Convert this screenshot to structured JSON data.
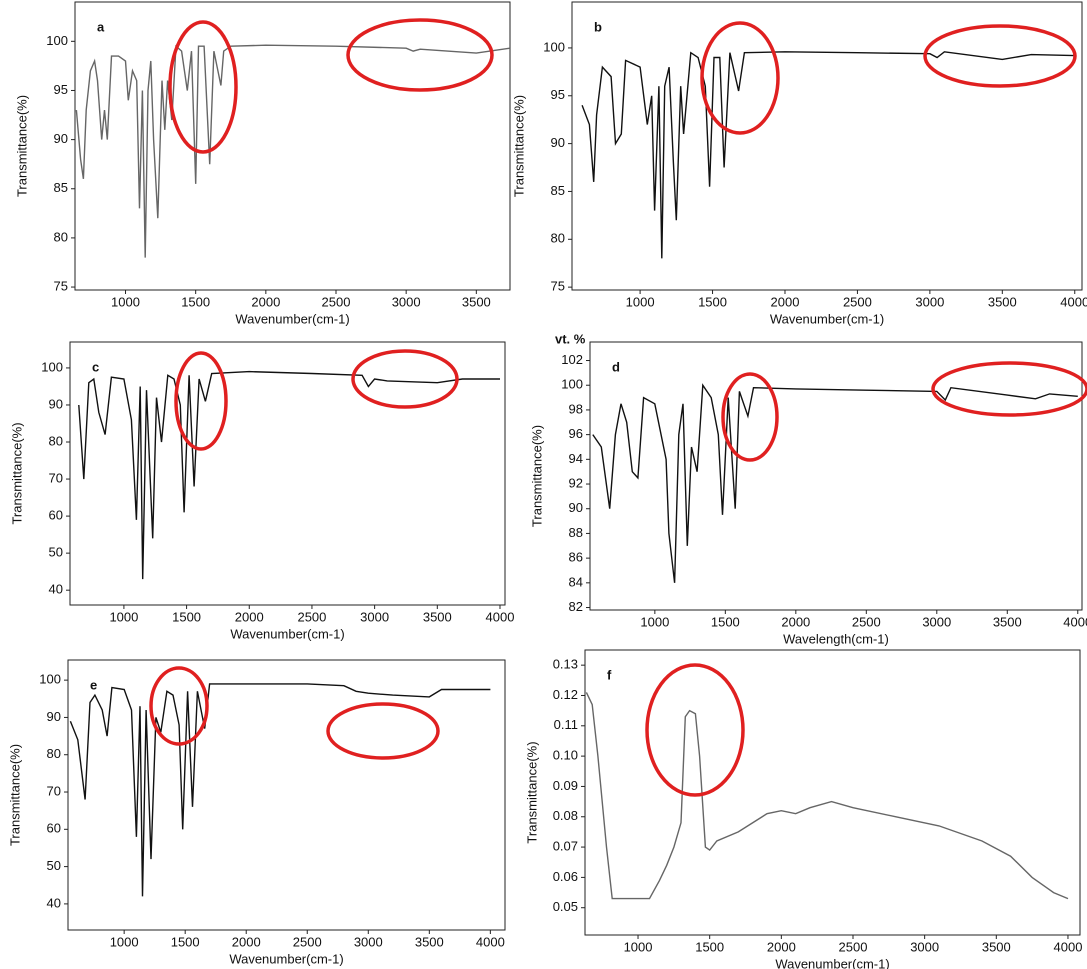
{
  "fragment": "vt. %",
  "chart_data": [
    {
      "type": "line",
      "panel_label": "a",
      "x_label": "Wavenumber(cm-1)",
      "y_label": "Transmittance(%)",
      "x": [
        650,
        680,
        700,
        720,
        750,
        780,
        800,
        830,
        850,
        870,
        900,
        950,
        1000,
        1020,
        1050,
        1080,
        1100,
        1120,
        1140,
        1160,
        1180,
        1200,
        1230,
        1260,
        1280,
        1300,
        1330,
        1360,
        1400,
        1440,
        1470,
        1500,
        1520,
        1560,
        1600,
        1630,
        1680,
        1700,
        1750,
        2000,
        2500,
        3000,
        3050,
        3100,
        3500,
        3740
      ],
      "series": [
        {
          "color": "#666666",
          "values": [
            93,
            88,
            86,
            93,
            97,
            98,
            96,
            90,
            93,
            90,
            98.5,
            98.5,
            98,
            94,
            97,
            96,
            83,
            95,
            78,
            95,
            98,
            90,
            82,
            96,
            91,
            96,
            92,
            99.5,
            99,
            95,
            99,
            85.5,
            99.5,
            99.5,
            87.5,
            99,
            95.5,
            99,
            99.5,
            99.6,
            99.5,
            99.3,
            99,
            99.2,
            98.8,
            99.3
          ]
        }
      ],
      "xlim": [
        640,
        3740
      ],
      "ylim": [
        74.7,
        104
      ],
      "xticks": [
        1000,
        1500,
        2000,
        2500,
        3000,
        3500
      ],
      "yticks": [
        75,
        80,
        85,
        90,
        95,
        100
      ]
    },
    {
      "type": "line",
      "panel_label": "b",
      "x_label": "Wavenumber(cm-1)",
      "y_label": "Transmittance(%)",
      "x": [
        600,
        650,
        680,
        700,
        740,
        800,
        830,
        870,
        900,
        1000,
        1050,
        1080,
        1100,
        1130,
        1150,
        1170,
        1200,
        1230,
        1250,
        1280,
        1300,
        1350,
        1400,
        1450,
        1480,
        1510,
        1550,
        1580,
        1620,
        1680,
        1720,
        2000,
        2500,
        3000,
        3050,
        3100,
        3500,
        3700,
        4000
      ],
      "series": [
        {
          "color": "#111111",
          "values": [
            94,
            92,
            86,
            93,
            98,
            97,
            90,
            91,
            98.7,
            98,
            92,
            95,
            83,
            96,
            78,
            96,
            98,
            88,
            82,
            96,
            91,
            99.5,
            99,
            96,
            85.5,
            99,
            99,
            87.5,
            99.5,
            95.5,
            99.5,
            99.6,
            99.5,
            99.4,
            99,
            99.6,
            98.8,
            99.3,
            99.2
          ]
        }
      ],
      "xlim": [
        530,
        4050
      ],
      "ylim": [
        74.7,
        104.8
      ],
      "xticks": [
        1000,
        1500,
        2000,
        2500,
        3000,
        3500,
        4000
      ],
      "yticks": [
        75,
        80,
        85,
        90,
        95,
        100
      ]
    },
    {
      "type": "line",
      "panel_label": "c",
      "x_label": "Wavenumber(cm-1)",
      "y_label": "Transmittance(%)",
      "x": [
        640,
        680,
        720,
        760,
        800,
        850,
        900,
        1000,
        1060,
        1100,
        1130,
        1150,
        1180,
        1230,
        1260,
        1300,
        1350,
        1400,
        1450,
        1480,
        1520,
        1560,
        1600,
        1650,
        1700,
        2000,
        2500,
        2900,
        2950,
        3000,
        3100,
        3500,
        3700,
        4000
      ],
      "series": [
        {
          "color": "#111111",
          "values": [
            90,
            70,
            96,
            97,
            88,
            82,
            97.5,
            97,
            86,
            59,
            95,
            43,
            94,
            54,
            92,
            80,
            98,
            97,
            90,
            61,
            98,
            68,
            97,
            91,
            98.5,
            99,
            98.5,
            98,
            95,
            97,
            96.5,
            96,
            97,
            97
          ]
        }
      ],
      "xlim": [
        570,
        4040
      ],
      "ylim": [
        36,
        107
      ],
      "xticks": [
        1000,
        1500,
        2000,
        2500,
        3000,
        3500,
        4000
      ],
      "yticks": [
        40,
        50,
        60,
        70,
        80,
        90,
        100
      ]
    },
    {
      "type": "line",
      "panel_label": "d",
      "x_label": "Wavelength(cm-1)",
      "y_label": "Transmittance(%)",
      "x": [
        560,
        620,
        680,
        720,
        760,
        800,
        840,
        880,
        920,
        1000,
        1080,
        1100,
        1140,
        1170,
        1200,
        1230,
        1260,
        1300,
        1340,
        1400,
        1450,
        1480,
        1520,
        1570,
        1600,
        1660,
        1700,
        2000,
        2500,
        3000,
        3060,
        3100,
        3500,
        3700,
        3800,
        4000
      ],
      "series": [
        {
          "color": "#111111",
          "values": [
            96,
            95,
            90,
            96,
            98.5,
            97,
            93,
            92.5,
            99,
            98.5,
            94,
            88,
            84,
            96,
            98.5,
            87,
            95,
            93,
            100,
            99,
            96,
            89.5,
            99,
            90,
            99.5,
            97.5,
            99.8,
            99.7,
            99.6,
            99.5,
            98.8,
            99.8,
            99.2,
            98.9,
            99.3,
            99.1
          ]
        }
      ],
      "xlim": [
        540,
        4030
      ],
      "ylim": [
        81.8,
        103.5
      ],
      "xticks": [
        1000,
        1500,
        2000,
        2500,
        3000,
        3500,
        4000
      ],
      "yticks": [
        82,
        84,
        86,
        88,
        90,
        92,
        94,
        96,
        98,
        100,
        102
      ]
    },
    {
      "type": "line",
      "panel_label": "e",
      "x_label": "Wavenumber(cm-1)",
      "y_label": "Transmittance(%)",
      "x": [
        560,
        620,
        680,
        720,
        760,
        820,
        860,
        900,
        1000,
        1060,
        1100,
        1130,
        1150,
        1180,
        1220,
        1260,
        1300,
        1350,
        1400,
        1450,
        1480,
        1520,
        1560,
        1600,
        1660,
        1700,
        2000,
        2500,
        2800,
        2900,
        3000,
        3200,
        3500,
        3600,
        4000
      ],
      "series": [
        {
          "color": "#111111",
          "values": [
            89,
            84,
            68,
            94,
            96,
            92,
            85,
            98,
            97.5,
            92,
            58,
            93,
            42,
            92,
            52,
            90,
            86,
            97,
            96,
            88,
            60,
            97,
            66,
            97,
            87,
            99,
            99,
            99,
            98.5,
            97,
            96.5,
            96,
            95.5,
            97.5,
            97.5
          ]
        }
      ],
      "xlim": [
        540,
        4120
      ],
      "ylim": [
        33,
        105.4
      ],
      "xticks": [
        1000,
        1500,
        2000,
        2500,
        3000,
        3500,
        4000
      ],
      "yticks": [
        40,
        50,
        60,
        70,
        80,
        90,
        100
      ]
    },
    {
      "type": "line",
      "panel_label": "f",
      "x_label": "Wavenumber(cm-1)",
      "y_label": "Transmittance(%)",
      "x": [
        640,
        680,
        720,
        780,
        820,
        900,
        1000,
        1080,
        1150,
        1200,
        1250,
        1300,
        1330,
        1360,
        1400,
        1430,
        1470,
        1500,
        1550,
        1700,
        1900,
        2000,
        2100,
        2200,
        2350,
        2500,
        2800,
        3100,
        3400,
        3600,
        3750,
        3900,
        4000
      ],
      "series": [
        {
          "color": "#666666",
          "values": [
            0.121,
            0.117,
            0.1,
            0.07,
            0.053,
            0.053,
            0.053,
            0.053,
            0.059,
            0.064,
            0.07,
            0.078,
            0.113,
            0.115,
            0.114,
            0.1,
            0.07,
            0.069,
            0.072,
            0.075,
            0.081,
            0.082,
            0.081,
            0.083,
            0.085,
            0.083,
            0.08,
            0.077,
            0.072,
            0.067,
            0.06,
            0.055,
            0.053
          ]
        }
      ],
      "xlim": [
        630,
        4084
      ],
      "ylim": [
        0.041,
        0.135
      ],
      "xticks": [
        1000,
        1500,
        2000,
        2500,
        3000,
        3500,
        4000
      ],
      "yticks": [
        0.05,
        0.06,
        0.07,
        0.08,
        0.09,
        {
          "value": 0.1,
          "label": "0.10"
        },
        0.11,
        0.12,
        0.13
      ]
    }
  ]
}
